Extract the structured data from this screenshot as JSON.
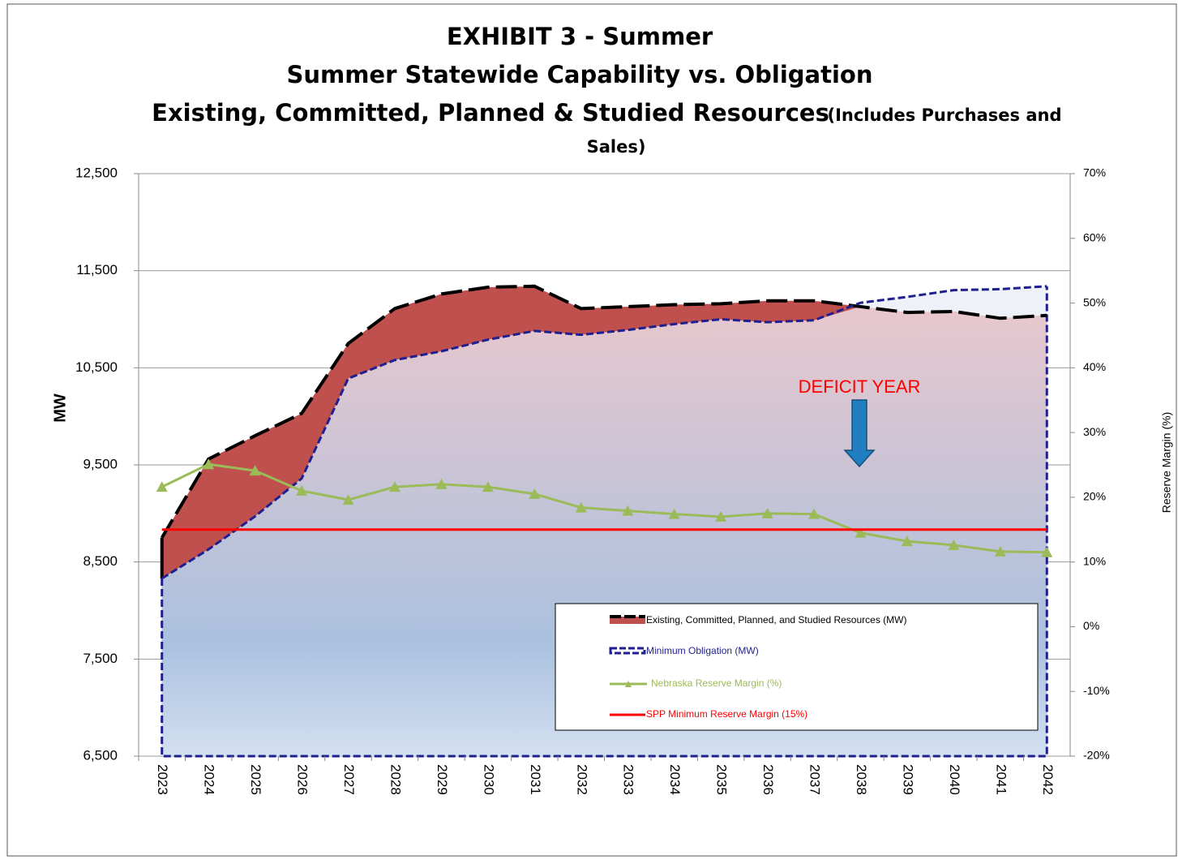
{
  "chart_data": {
    "type": "line",
    "title": "EXHIBIT 3 - Summer",
    "subtitle": "Summer Statewide Capability vs. Obligation",
    "subtitle2": "Existing, Committed, Planned & Studied Resources",
    "subtitle_note": [
      "(Includes Purchases and",
      "Sales)"
    ],
    "annotation": "DEFICIT YEAR",
    "ylabel": "MW",
    "y2label": "Reserve Margin (%)",
    "categories": [
      "2023",
      "2024",
      "2025",
      "2026",
      "2027",
      "2028",
      "2029",
      "2030",
      "2031",
      "2032",
      "2033",
      "2034",
      "2035",
      "2036",
      "2037",
      "2038",
      "2039",
      "2040",
      "2041",
      "2042"
    ],
    "ylim": [
      6500,
      12500
    ],
    "yticks": [
      {
        "value": 6500,
        "label": "6,500"
      },
      {
        "value": 7500,
        "label": "7,500"
      },
      {
        "value": 8500,
        "label": "8,500"
      },
      {
        "value": 9500,
        "label": "9,500"
      },
      {
        "value": 10500,
        "label": "10,500"
      },
      {
        "value": 11500,
        "label": "11,500"
      },
      {
        "value": 12500,
        "label": "12,500"
      }
    ],
    "y2lim": [
      -20,
      70
    ],
    "y2ticks": [
      {
        "value": -20,
        "label": "-20%"
      },
      {
        "value": -10,
        "label": "-10%"
      },
      {
        "value": 0,
        "label": "0%"
      },
      {
        "value": 10,
        "label": "10%"
      },
      {
        "value": 20,
        "label": "20%"
      },
      {
        "value": 30,
        "label": "30%"
      },
      {
        "value": 40,
        "label": "40%"
      },
      {
        "value": 50,
        "label": "50%"
      },
      {
        "value": 60,
        "label": "60%"
      },
      {
        "value": 70,
        "label": "70%"
      }
    ],
    "grid": true,
    "series": [
      {
        "name": "Existing, Committed, Planned, and Studied Resources (MW)",
        "color": "#000000",
        "fill": "#c0504d",
        "values": [
          8750,
          9560,
          9800,
          10030,
          10750,
          11110,
          11260,
          11330,
          11340,
          11110,
          11130,
          11150,
          11160,
          11190,
          11190,
          11130,
          11070,
          11080,
          11010,
          11040
        ]
      },
      {
        "name": "Minimum Obligation (MW)",
        "color": "#1f1f8f",
        "values": [
          8330,
          8630,
          8970,
          9360,
          10390,
          10580,
          10670,
          10790,
          10880,
          10840,
          10890,
          10950,
          11000,
          10970,
          10990,
          11170,
          11230,
          11300,
          11310,
          11340
        ]
      },
      {
        "name": "Nebraska Reserve Margin (%)",
        "color": "#9bbb59",
        "axis": "y2",
        "values": [
          21.6,
          25.1,
          24.1,
          21.0,
          19.6,
          21.6,
          22.0,
          21.6,
          20.5,
          18.4,
          17.9,
          17.4,
          17.0,
          17.5,
          17.4,
          14.5,
          13.2,
          12.6,
          11.6,
          11.5
        ]
      },
      {
        "name": "SPP Minimum Reserve Margin (15%)",
        "color": "#ff0000",
        "axis": "y2",
        "values": [
          15,
          15,
          15,
          15,
          15,
          15,
          15,
          15,
          15,
          15,
          15,
          15,
          15,
          15,
          15,
          15,
          15,
          15,
          15,
          15
        ]
      }
    ]
  }
}
